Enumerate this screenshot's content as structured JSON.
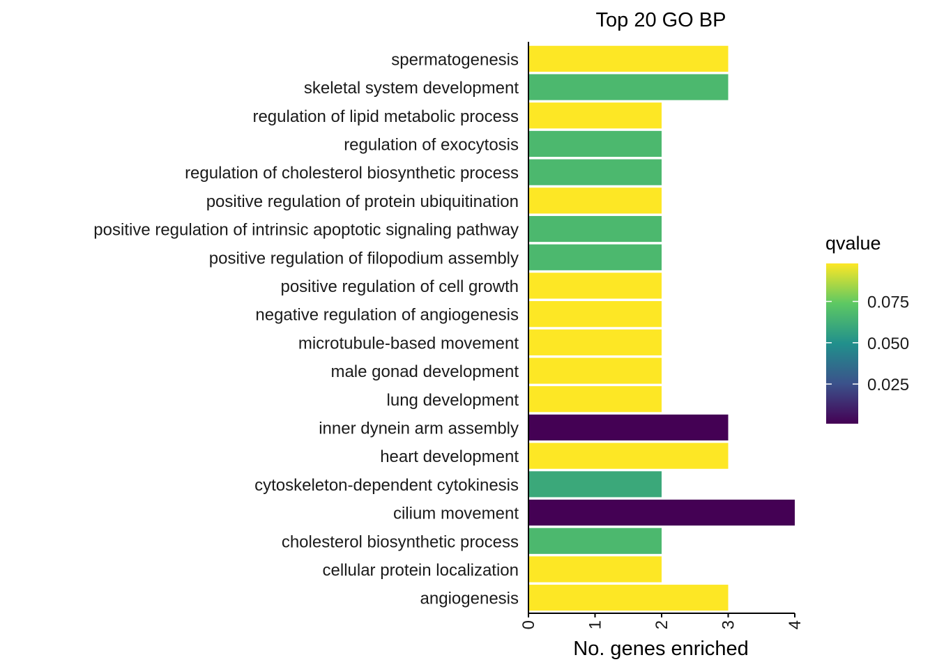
{
  "chart_data": {
    "type": "bar",
    "orientation": "horizontal",
    "title": "Top 20 GO BP",
    "xlabel": "No. genes enriched",
    "ylabel": "",
    "xlim": [
      0,
      4
    ],
    "x_ticks": [
      "0",
      "1",
      "2",
      "3",
      "4"
    ],
    "grid": false,
    "legend_placement": "right",
    "categories": [
      "spermatogenesis",
      "skeletal system development",
      "regulation of lipid metabolic process",
      "regulation of exocytosis",
      "regulation of cholesterol biosynthetic process",
      "positive regulation of protein ubiquitination",
      "positive regulation of intrinsic apoptotic signaling pathway",
      "positive regulation of filopodium assembly",
      "positive regulation of cell growth",
      "negative regulation of angiogenesis",
      "microtubule-based movement",
      "male gonad development",
      "lung development",
      "inner dynein arm assembly",
      "heart development",
      "cytoskeleton-dependent cytokinesis",
      "cilium movement",
      "cholesterol biosynthetic process",
      "cellular protein localization",
      "angiogenesis"
    ],
    "values": [
      3,
      3,
      2,
      2,
      2,
      2,
      2,
      2,
      2,
      2,
      2,
      2,
      2,
      3,
      3,
      2,
      4,
      2,
      2,
      3
    ],
    "qvalues": [
      0.098,
      0.067,
      0.098,
      0.067,
      0.067,
      0.098,
      0.067,
      0.067,
      0.098,
      0.098,
      0.098,
      0.098,
      0.098,
      0.001,
      0.098,
      0.06,
      0.001,
      0.067,
      0.098,
      0.098
    ],
    "color_legend": {
      "title": "qvalue",
      "ticks": [
        {
          "value": 0.075,
          "label": "0.075"
        },
        {
          "value": 0.05,
          "label": "0.050"
        },
        {
          "value": 0.025,
          "label": "0.025"
        }
      ],
      "range": [
        0.001,
        0.098
      ],
      "colormap": [
        "#440154",
        "#3b528b",
        "#21908c",
        "#5dc863",
        "#fde725"
      ]
    }
  }
}
